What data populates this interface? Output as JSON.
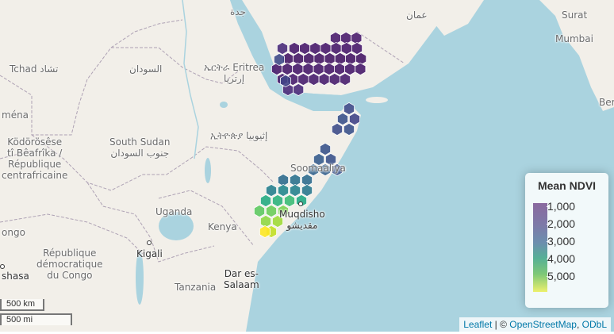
{
  "map": {
    "basemap": "OpenStreetMap",
    "ocean_color": "#aad3df",
    "land_color": "#f2efe9",
    "border_color": "#9e8fa8",
    "palette": "viridis",
    "place_labels": [
      {
        "text": "جدة"
      },
      {
        "text": "عمان"
      },
      {
        "text": "Surat"
      },
      {
        "text": "Mumbai"
      },
      {
        "text": "Ber"
      },
      {
        "text": "Tchad تشاد"
      },
      {
        "text": "السودان"
      },
      {
        "text": "ኤርትራ Eritrea\nإرتريا"
      },
      {
        "text": "ména"
      },
      {
        "text": "Ködörösêse\ntî Bêafrîka /\nRépublique\ncentrafricaine"
      },
      {
        "text": "South Sudan\nجنوب السودان"
      },
      {
        "text": "ኢትዮጵያ إثيوبيا"
      },
      {
        "text": "Soomaaliya"
      },
      {
        "text": "Muqdisho\nمقديشو"
      },
      {
        "text": "Uganda"
      },
      {
        "text": "Kenya"
      },
      {
        "text": "ongo"
      },
      {
        "text": "Kigali"
      },
      {
        "text": "République\ndémocratique\ndu Congo"
      },
      {
        "text": "shasa"
      },
      {
        "text": "Tanzania"
      },
      {
        "text": "Dar es-\nSalaam"
      }
    ]
  },
  "legend": {
    "title": "Mean NDVI",
    "labels": [
      "1,000",
      "2,000",
      "3,000",
      "4,000",
      "5,000"
    ]
  },
  "scale": {
    "km": "500 km",
    "mi": "500 mi"
  },
  "attribution": {
    "leaflet": "Leaflet",
    "sep": " | © ",
    "osm": "OpenStreetMap",
    "comma": ", ",
    "odbl": "ODbL"
  }
}
